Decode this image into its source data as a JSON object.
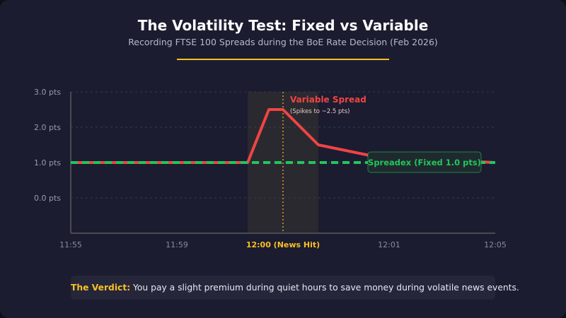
{
  "header": {
    "title": "The Volatility Test: Fixed vs Variable",
    "subtitle": "Recording FTSE 100 Spreads during the BoE Rate Decision (Feb 2026)"
  },
  "chart_data": {
    "type": "line",
    "title": "The Volatility Test: Fixed vs Variable",
    "subtitle": "Recording FTSE 100 Spreads during the BoE Rate Decision (Feb 2026)",
    "xlabel": "",
    "ylabel": "",
    "x_ticks": [
      "11:55",
      "11:59",
      "12:00 (News Hit)",
      "12:01",
      "12:05"
    ],
    "highlight_tick": "12:00 (News Hit)",
    "y_ticks": [
      "3.0 pts",
      "2.0 pts",
      "1.0 pts",
      "0.0 pts"
    ],
    "ylim": [
      -1,
      3
    ],
    "grid": true,
    "series": [
      {
        "name": "Variable Spread",
        "color": "#ef4444",
        "x_pos": [
          0,
          1.667,
          1.867,
          2,
          2.333,
          2.9,
          4
        ],
        "values": [
          1.0,
          1.0,
          2.5,
          2.5,
          1.5,
          1.15,
          1.0
        ]
      },
      {
        "name": "Spreadex (Fixed 1.0 pts)",
        "color": "#22c55e",
        "dashed": true,
        "x_pos": [
          0,
          4
        ],
        "values": [
          1.0,
          1.0
        ]
      }
    ],
    "annotations": {
      "variable_label": "Variable Spread",
      "variable_note": "(Spikes to ~2.5 pts)",
      "fixed_label": "Spreadex (Fixed 1.0 pts)"
    },
    "news_window": [
      1.667,
      2.333
    ],
    "news_line": 2
  },
  "verdict": {
    "label": "The Verdict:",
    "text": " You pay a slight premium during quiet hours to save money during volatile news events."
  }
}
